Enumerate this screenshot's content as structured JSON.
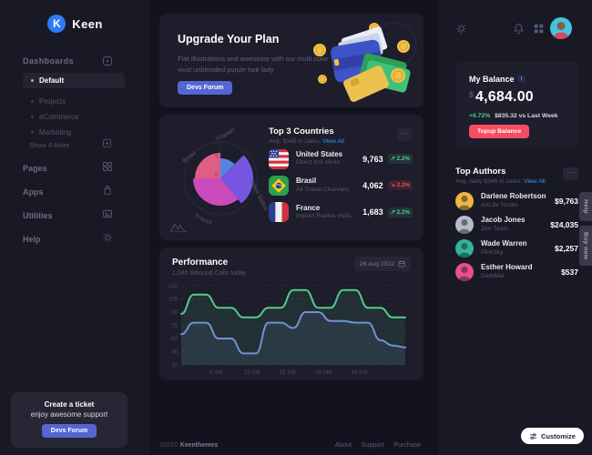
{
  "app": {
    "brand": "Keen"
  },
  "header": {
    "icons": [
      "settings",
      "notifications",
      "apps-grid",
      "user-avatar"
    ]
  },
  "sidebar": {
    "section_label": "Dashboards",
    "menu": [
      {
        "label": "Default",
        "active": true
      },
      {
        "label": "Projects",
        "active": false
      },
      {
        "label": "eCommerce",
        "active": false
      },
      {
        "label": "Marketing",
        "active": false
      }
    ],
    "show_more": "Show 4 More",
    "nav": [
      {
        "label": "Pages",
        "icon": "grid-icon"
      },
      {
        "label": "Apps",
        "icon": "bag-icon"
      },
      {
        "label": "Utilities",
        "icon": "image-icon"
      },
      {
        "label": "Help",
        "icon": "gear-icon"
      }
    ],
    "ticket": {
      "title": "Create a ticket",
      "subtitle": "enjoy awesome support",
      "button": "Devs Forum"
    }
  },
  "upgrade": {
    "title": "Upgrade Your Plan",
    "description": "Flat illustrations and awesome with our multi color vivid unblended purple hair lady",
    "button": "Devs Forum"
  },
  "countries": {
    "title": "Top 3 Countries",
    "subtitle": "Avg. $345 in sales.",
    "link": "View All",
    "rows": [
      {
        "flag": "us",
        "name": "United States",
        "desc": "Direct link clicks",
        "value": "9,763",
        "delta": "2.2%",
        "trend": "up"
      },
      {
        "flag": "br",
        "name": "Brasil",
        "desc": "All Social Channels",
        "value": "4,062",
        "delta": "2.2%",
        "trend": "down"
      },
      {
        "flag": "fr",
        "name": "France",
        "desc": "Impact Radius visits",
        "value": "1,683",
        "delta": "2.2%",
        "trend": "up"
      }
    ]
  },
  "performance": {
    "title": "Performance",
    "subtitle": "1,046 Inbound Calls today",
    "date": "26 Aug 2022"
  },
  "balance": {
    "title": "My Balance",
    "currency": "$",
    "amount": "4,684.00",
    "delta": "+6.72%",
    "note": "$835.32 vs Last Week",
    "button": "Topup Balance",
    "delta_color": "#4ecb8d",
    "button_color": "#f64e60"
  },
  "authors": {
    "title": "Top Authors",
    "subtitle": "Avg. daily $346 in sales.",
    "link": "View All",
    "rows": [
      {
        "name": "Darlene Robertson",
        "company": "ArtLife Studio",
        "amount": "$9,763",
        "avatar_color": "#f0b63f"
      },
      {
        "name": "Jacob Jones",
        "company": "Zen Team",
        "amount": "$24,035",
        "avatar_color": "#b9bdc9"
      },
      {
        "name": "Wade Warren",
        "company": "PinkSky",
        "amount": "$2,257",
        "avatar_color": "#35b39a"
      },
      {
        "name": "Esther Howard",
        "company": "DarkMat",
        "amount": "$537",
        "avatar_color": "#e8508e"
      }
    ]
  },
  "edge_tabs": {
    "help": "Help",
    "buy_now": "Buy now"
  },
  "customize": {
    "label": "Customize"
  },
  "footer": {
    "copyright": "2022©",
    "brand": "Keenthemes",
    "links": [
      "About",
      "Support",
      "Purchase"
    ]
  },
  "colors": {
    "accent_blue": "#5566d2",
    "link_blue": "#3699ff",
    "success": "#4ecb8d",
    "danger": "#f64e60"
  },
  "chart_data": [
    {
      "type": "polar-area",
      "card": "Top 3 Countries",
      "max": 10,
      "r_ticks": [
        0,
        5,
        10
      ],
      "legend_position": "around",
      "series": [
        {
          "label": "Spain",
          "value": 5.5,
          "color": "#5b8df2",
          "start_angle": 0,
          "end_angle": 45
        },
        {
          "label": "United States",
          "value": 9,
          "color": "#7e5bf0",
          "start_angle": 45,
          "end_angle": 140
        },
        {
          "label": "France",
          "value": 7.5,
          "color": "#d94fc9",
          "start_angle": 140,
          "end_angle": 270
        },
        {
          "label": "Brasil",
          "value": 7,
          "color": "#f1638c",
          "start_angle": 270,
          "end_angle": 360
        }
      ]
    },
    {
      "type": "line",
      "card": "Performance",
      "x_ticks": [
        "9 AM",
        "12 PM",
        "15 PM",
        "18 PM",
        "19 PM"
      ],
      "y_ticks": [
        30,
        45,
        60,
        75,
        90,
        105,
        120
      ],
      "ylim": [
        30,
        120
      ],
      "grid": "dashed-horizontal",
      "series": [
        {
          "name": "inbound-calls-green",
          "color": "#50cd89",
          "values": [
            88,
            110,
            110,
            95,
            95,
            84,
            84,
            95,
            95,
            115,
            115,
            95,
            95,
            115,
            115,
            95,
            95,
            84,
            84
          ]
        },
        {
          "name": "inbound-calls-blue",
          "color": "#7192d4",
          "values": [
            65,
            78,
            78,
            60,
            60,
            43,
            43,
            78,
            78,
            72,
            90,
            90,
            80,
            80,
            78,
            78,
            58,
            52,
            50
          ]
        }
      ]
    }
  ]
}
